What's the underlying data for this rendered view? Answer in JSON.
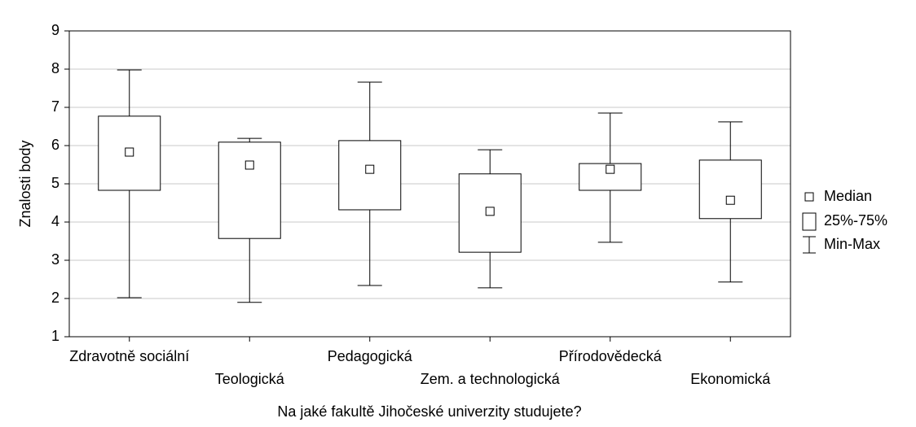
{
  "chart_data": {
    "type": "box",
    "y_label": "Znalosti body",
    "x_label": "Na jaké fakultě Jihočeské univerzity studujete?",
    "categories": [
      "Zdravotně sociální",
      "Teologická",
      "Pedagogická",
      "Zem. a technologická",
      "Přírodovědecká",
      "Ekonomická"
    ],
    "min": [
      2.02,
      1.9,
      2.34,
      2.28,
      3.47,
      2.43
    ],
    "q1": [
      4.83,
      3.57,
      4.32,
      3.21,
      4.83,
      4.09
    ],
    "median": [
      5.83,
      5.49,
      5.38,
      4.28,
      5.38,
      4.57
    ],
    "q3": [
      6.77,
      6.09,
      6.13,
      5.26,
      5.53,
      5.62
    ],
    "max": [
      7.98,
      6.19,
      7.66,
      5.89,
      6.85,
      6.62
    ],
    "legend": [
      "Median",
      "25%-75%",
      "Min-Max"
    ],
    "color": "#000000",
    "ylim": [
      1,
      9
    ],
    "yticks": [
      1,
      2,
      3,
      4,
      5,
      6,
      7,
      8,
      9
    ],
    "grid": true
  }
}
